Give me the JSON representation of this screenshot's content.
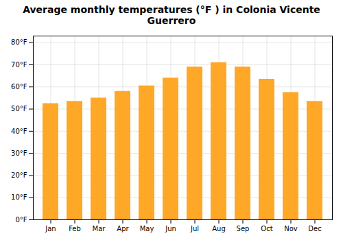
{
  "chart_data": {
    "type": "bar",
    "title": "Average monthly temperatures (°F ) in Colonia Vicente Guerrero",
    "categories": [
      "Jan",
      "Feb",
      "Mar",
      "Apr",
      "May",
      "Jun",
      "Jul",
      "Aug",
      "Sep",
      "Oct",
      "Nov",
      "Dec"
    ],
    "values": [
      52.5,
      53.5,
      55.0,
      58.0,
      60.5,
      64.0,
      69.0,
      71.0,
      69.0,
      63.5,
      57.5,
      53.5
    ],
    "color": "#FFA726",
    "ylim": [
      0,
      83
    ],
    "yticks": [
      {
        "value": 0,
        "label": "0°F"
      },
      {
        "value": 10,
        "label": "10°F"
      },
      {
        "value": 20,
        "label": "20°F"
      },
      {
        "value": 30,
        "label": "30°F"
      },
      {
        "value": 40,
        "label": "40°F"
      },
      {
        "value": 50,
        "label": "50°F"
      },
      {
        "value": 60,
        "label": "60°F"
      },
      {
        "value": 70,
        "label": "70°F"
      },
      {
        "value": 80,
        "label": "80°F"
      }
    ],
    "grid": true
  }
}
